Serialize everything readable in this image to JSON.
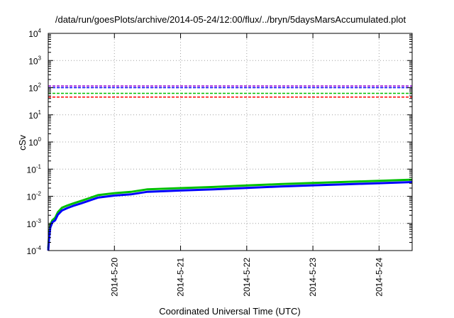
{
  "chart_data": {
    "type": "line",
    "title": "/data/run/goesPlots/archive/2014-05-24/12:00/flux/../bryn/5daysMarsAccumulated.plot",
    "xlabel": "Coordinated Universal Time (UTC)",
    "ylabel": "cSv",
    "x_axis_type": "date",
    "xlim": [
      "2014-05-19 00:00",
      "2014-05-24 12:00"
    ],
    "ylim": [
      0.0001,
      10000
    ],
    "y_scale": "log",
    "grid": true,
    "legend": "none",
    "x_ticks": [
      "2014-5-20",
      "2014-5-21",
      "2014-5-22",
      "2014-5-23",
      "2014-5-24"
    ],
    "y_ticks": [
      {
        "base": "10",
        "exp": "-4",
        "value": 0.0001
      },
      {
        "base": "10",
        "exp": "-3",
        "value": 0.001
      },
      {
        "base": "10",
        "exp": "-2",
        "value": 0.01
      },
      {
        "base": "10",
        "exp": "-1",
        "value": 0.1
      },
      {
        "base": "10",
        "exp": "0",
        "value": 1
      },
      {
        "base": "10",
        "exp": "1",
        "value": 10
      },
      {
        "base": "10",
        "exp": "2",
        "value": 100
      },
      {
        "base": "10",
        "exp": "3",
        "value": 1000
      },
      {
        "base": "10",
        "exp": "4",
        "value": 10000
      }
    ],
    "thresholds": [
      {
        "value": 115,
        "color": "#9400d3",
        "style": "dashed"
      },
      {
        "value": 100,
        "color": "#0000ff",
        "style": "dashed"
      },
      {
        "value": 62,
        "color": "#00c000",
        "style": "dashed"
      },
      {
        "value": 45,
        "color": "#ff0000",
        "style": "dashed"
      }
    ],
    "series": [
      {
        "color": "#00c000",
        "line_width": 3,
        "x": [
          "2014-05-19 00:00",
          "2014-05-19 00:15",
          "2014-05-19 00:45",
          "2014-05-19 01:30",
          "2014-05-19 02:30",
          "2014-05-19 03:30",
          "2014-05-19 05:00",
          "2014-05-19 07:00",
          "2014-05-19 09:00",
          "2014-05-19 12:00",
          "2014-05-19 15:00",
          "2014-05-19 18:00",
          "2014-05-20 00:00",
          "2014-05-20 06:00",
          "2014-05-20 12:00",
          "2014-05-21 00:00",
          "2014-05-21 12:00",
          "2014-05-22 00:00",
          "2014-05-22 12:00",
          "2014-05-23 00:00",
          "2014-05-23 12:00",
          "2014-05-24 00:00",
          "2014-05-24 12:00"
        ],
        "y": [
          0.00012,
          0.0003,
          0.0009,
          0.0013,
          0.0016,
          0.0026,
          0.0038,
          0.0046,
          0.0054,
          0.0068,
          0.0086,
          0.011,
          0.013,
          0.0145,
          0.018,
          0.02,
          0.022,
          0.025,
          0.028,
          0.031,
          0.034,
          0.037,
          0.041
        ]
      },
      {
        "color": "#0000ff",
        "line_width": 3,
        "x": [
          "2014-05-19 00:00",
          "2014-05-19 00:15",
          "2014-05-19 00:45",
          "2014-05-19 01:30",
          "2014-05-19 02:30",
          "2014-05-19 03:30",
          "2014-05-19 05:00",
          "2014-05-19 07:00",
          "2014-05-19 09:00",
          "2014-05-19 12:00",
          "2014-05-19 15:00",
          "2014-05-19 18:00",
          "2014-05-20 00:00",
          "2014-05-20 06:00",
          "2014-05-20 12:00",
          "2014-05-21 00:00",
          "2014-05-21 12:00",
          "2014-05-22 00:00",
          "2014-05-22 12:00",
          "2014-05-23 00:00",
          "2014-05-23 12:00",
          "2014-05-24 00:00",
          "2014-05-24 12:00"
        ],
        "y": [
          0.0001,
          0.00025,
          0.0007,
          0.0011,
          0.0013,
          0.0021,
          0.003,
          0.0037,
          0.0044,
          0.0055,
          0.007,
          0.0089,
          0.0106,
          0.0118,
          0.0146,
          0.0163,
          0.018,
          0.0204,
          0.0228,
          0.0252,
          0.0277,
          0.0302,
          0.0333
        ]
      }
    ]
  }
}
